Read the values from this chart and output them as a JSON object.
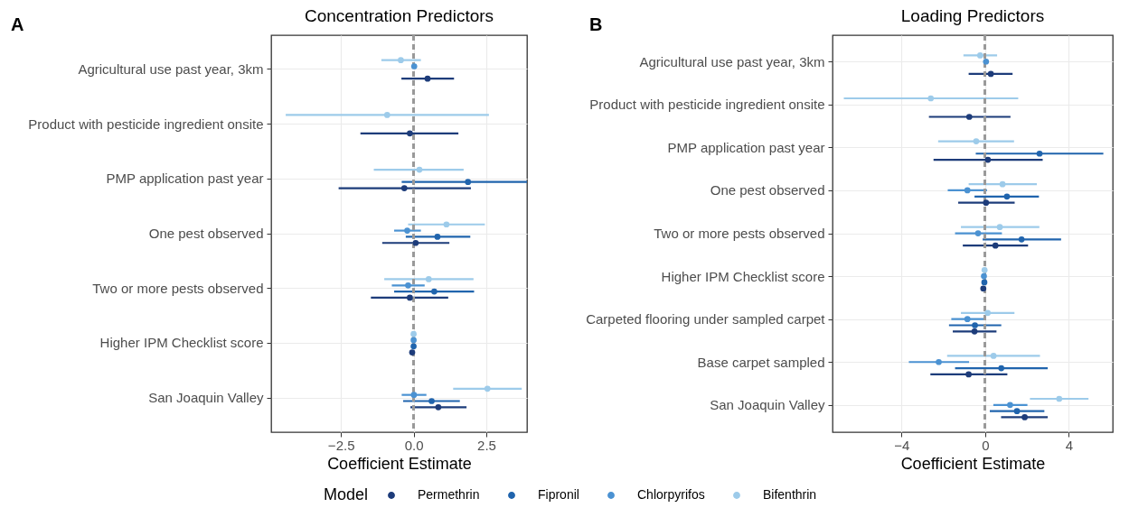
{
  "chart_data": [
    {
      "type": "scatter",
      "orientation": "horizontal",
      "title": "Concentration Predictors",
      "xlabel": "Coefficient Estimate",
      "legend_title": "Model",
      "legend": "bottom",
      "grid": true,
      "marker": "circle",
      "annotations": [
        "A"
      ],
      "categories": [
        "Agricultural use past year, 3km",
        "Product with pesticide ingredient onsite",
        "PMP application past year",
        "One pest observed",
        "Two or more pests observed",
        "Higher IPM Checklist score",
        "San Joaquin Valley"
      ],
      "xlim": [
        -4.9,
        3.9
      ],
      "xticks": [
        {
          "value": -2.5,
          "label": "−2.5"
        },
        {
          "value": 0,
          "label": "0.0"
        },
        2.5
      ],
      "ref_lines": [
        {
          "axis": "x",
          "value": 0,
          "color": "#999999",
          "line_style": "dashed"
        }
      ],
      "series": [
        {
          "name": "Permethrin",
          "color": "#1d3c7a",
          "values": [
            0.48,
            -0.13,
            -0.32,
            0.07,
            -0.13,
            -0.05,
            0.85
          ],
          "errors": [
            [
              -0.42,
              1.39
            ],
            [
              -1.83,
              1.54
            ],
            [
              -2.58,
              1.97
            ],
            [
              -1.08,
              1.23
            ],
            [
              -1.47,
              1.19
            ],
            null,
            [
              -0.11,
              1.82
            ]
          ]
        },
        {
          "name": "Fipronil",
          "color": "#2064ad",
          "values": [
            null,
            null,
            1.87,
            0.82,
            0.71,
            0.0,
            0.62
          ],
          "errors": [
            null,
            null,
            [
              -0.41,
              3.9
            ],
            [
              -0.27,
              1.95
            ],
            [
              -0.67,
              2.08
            ],
            null,
            [
              -0.36,
              1.59
            ]
          ]
        },
        {
          "name": "Chlorpyrifos",
          "color": "#4b92d2",
          "values": [
            0.02,
            null,
            null,
            -0.22,
            -0.19,
            0.0,
            0.01
          ],
          "errors": [
            null,
            null,
            null,
            [
              -0.67,
              0.25
            ],
            [
              -0.75,
              0.38
            ],
            null,
            [
              -0.41,
              0.44
            ]
          ]
        },
        {
          "name": "Bifenthrin",
          "color": "#9dcbea",
          "values": [
            -0.44,
            -0.91,
            0.2,
            1.13,
            0.52,
            0.0,
            2.54
          ],
          "errors": [
            [
              -1.11,
              0.25
            ],
            [
              -4.4,
              2.59
            ],
            [
              -1.37,
              1.72
            ],
            [
              -0.19,
              2.45
            ],
            [
              -1.01,
              2.06
            ],
            null,
            [
              1.36,
              3.72
            ]
          ]
        }
      ]
    },
    {
      "type": "scatter",
      "orientation": "horizontal",
      "title": "Loading Predictors",
      "xlabel": "Coefficient Estimate",
      "grid": true,
      "marker": "circle",
      "annotations": [
        "B"
      ],
      "categories": [
        "Agricultural use past year, 3km",
        "Product with pesticide ingredient onsite",
        "PMP application past year",
        "One pest observed",
        "Two or more pests observed",
        "Higher IPM Checklist score",
        "Carpeted flooring under sampled carpet",
        "Base carpet sampled",
        "San Joaquin Valley"
      ],
      "xlim": [
        -7.3,
        6.1
      ],
      "xticks": [
        {
          "value": -4,
          "label": "−4"
        },
        0,
        4
      ],
      "ref_lines": [
        {
          "axis": "x",
          "value": 0,
          "color": "#999999",
          "line_style": "dashed"
        }
      ],
      "series": [
        {
          "name": "Permethrin",
          "color": "#1d3c7a",
          "values": [
            0.27,
            -0.76,
            0.13,
            0.04,
            0.49,
            -0.09,
            -0.51,
            -0.79,
            1.89
          ],
          "errors": [
            [
              -0.79,
              1.31
            ],
            [
              -2.69,
              1.21
            ],
            [
              -2.47,
              2.75
            ],
            [
              -1.29,
              1.41
            ],
            [
              -1.07,
              2.05
            ],
            null,
            [
              -1.55,
              0.54
            ],
            [
              -2.62,
              1.06
            ],
            [
              0.76,
              2.99
            ]
          ]
        },
        {
          "name": "Fipronil",
          "color": "#2064ad",
          "values": [
            null,
            null,
            2.6,
            1.04,
            1.74,
            -0.04,
            -0.49,
            0.77,
            1.52
          ],
          "errors": [
            null,
            null,
            [
              -0.45,
              5.65
            ],
            [
              -0.51,
              2.57
            ],
            [
              -0.12,
              3.63
            ],
            null,
            [
              -1.73,
              0.77
            ],
            [
              -1.44,
              2.99
            ],
            [
              0.22,
              2.83
            ]
          ]
        },
        {
          "name": "Chlorpyrifos",
          "color": "#4b92d2",
          "values": [
            0.04,
            null,
            null,
            -0.85,
            -0.34,
            -0.06,
            -0.85,
            -2.22,
            1.19
          ],
          "errors": [
            null,
            null,
            null,
            [
              -1.79,
              0.09
            ],
            [
              -1.44,
              0.8
            ],
            null,
            [
              -1.62,
              -0.04
            ],
            [
              -3.65,
              -0.77
            ],
            [
              0.39,
              2.02
            ]
          ]
        },
        {
          "name": "Bifenthrin",
          "color": "#9dcbea",
          "values": [
            -0.24,
            -2.6,
            -0.43,
            0.83,
            0.7,
            -0.03,
            0.12,
            0.4,
            3.54
          ],
          "errors": [
            [
              -1.04,
              0.57
            ],
            [
              -6.76,
              1.58
            ],
            [
              -2.25,
              1.38
            ],
            [
              -0.79,
              2.47
            ],
            [
              -1.16,
              2.59
            ],
            null,
            [
              -1.16,
              1.4
            ],
            [
              -1.82,
              2.62
            ],
            [
              2.14,
              4.94
            ]
          ]
        }
      ]
    }
  ]
}
